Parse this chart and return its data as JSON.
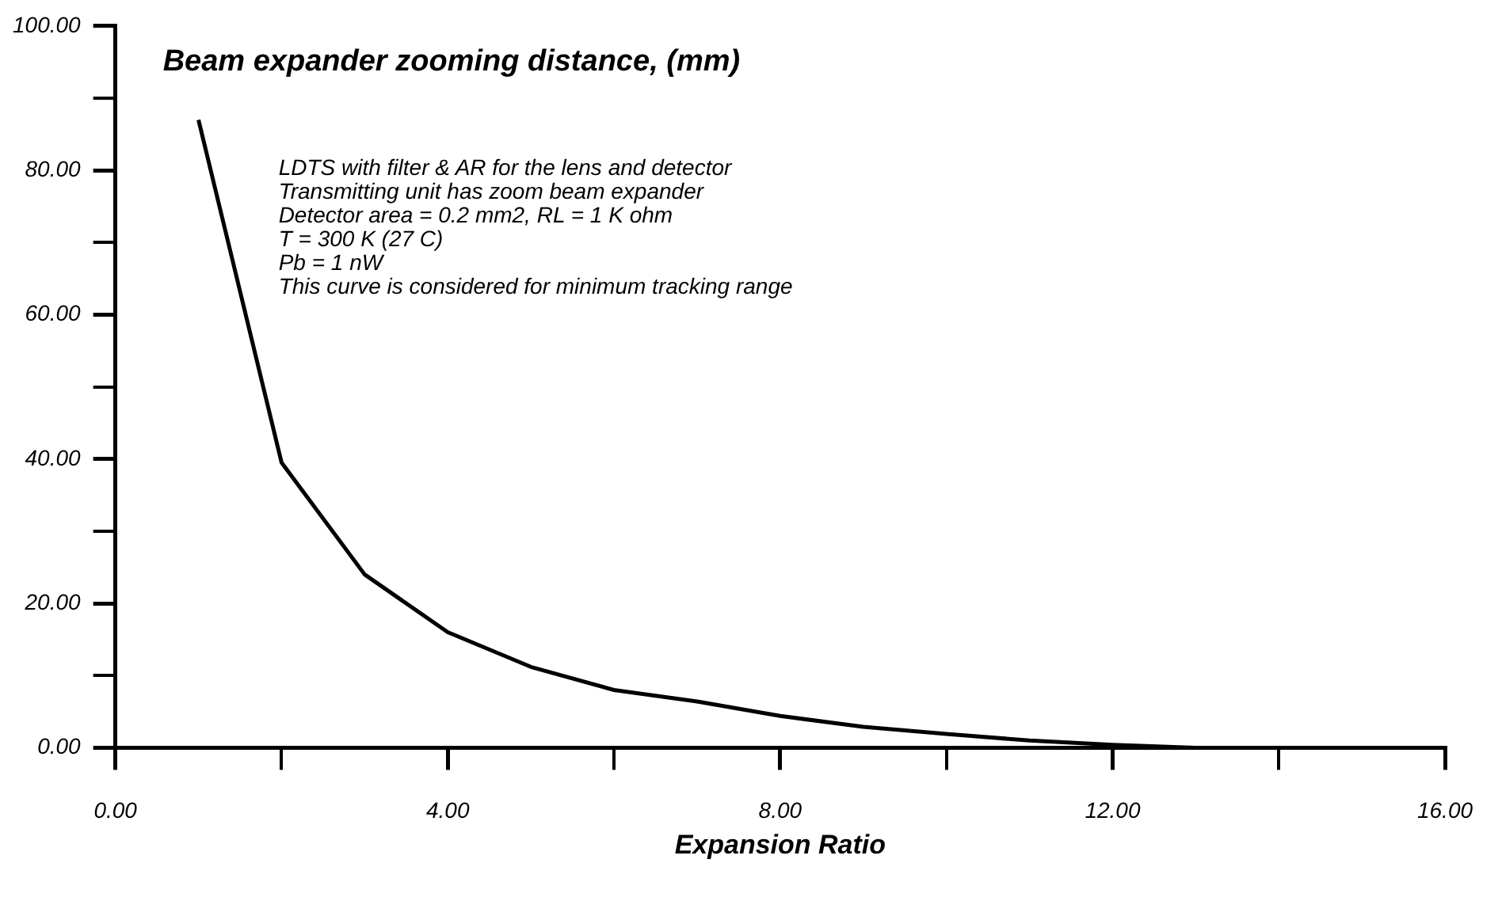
{
  "chart_data": {
    "type": "line",
    "title": "Beam expander zooming distance, (mm)",
    "xlabel": "Expansion Ratio",
    "annotations": [
      "LDTS with filter & AR for the lens and detector",
      "Transmitting unit has zoom beam expander",
      "Detector area = 0.2 mm2, RL = 1 K ohm",
      "T = 300 K (27 C)",
      "Pb = 1 nW",
      "This curve is considered for minimum tracking range"
    ],
    "x": [
      1,
      2,
      3,
      4,
      5,
      6,
      7,
      8,
      9,
      10,
      11,
      12,
      13
    ],
    "series": [
      {
        "color": "#000000",
        "values": [
          87,
          39.5,
          24,
          16,
          11.2,
          8,
          6.4,
          4.4,
          2.9,
          1.9,
          1,
          0.4,
          0
        ]
      }
    ],
    "xlim": [
      0,
      16
    ],
    "xticks": [
      {
        "value": 0,
        "label": "0.00"
      },
      {
        "value": 2,
        "label": null
      },
      {
        "value": 4,
        "label": "4.00"
      },
      {
        "value": 6,
        "label": null
      },
      {
        "value": 8,
        "label": "8.00"
      },
      {
        "value": 10,
        "label": null
      },
      {
        "value": 12,
        "label": "12.00"
      },
      {
        "value": 14,
        "label": null
      },
      {
        "value": 16,
        "label": "16.00"
      }
    ],
    "ylim": [
      0,
      100
    ],
    "yticks": [
      {
        "value": 0,
        "label": "0.00"
      },
      {
        "value": 10,
        "label": null
      },
      {
        "value": 20,
        "label": "20.00"
      },
      {
        "value": 30,
        "label": null
      },
      {
        "value": 40,
        "label": "40.00"
      },
      {
        "value": 50,
        "label": null
      },
      {
        "value": 60,
        "label": "60.00"
      },
      {
        "value": 70,
        "label": null
      },
      {
        "value": 80,
        "label": "80.00"
      },
      {
        "value": 90,
        "label": null
      },
      {
        "value": 100,
        "label": "100.00"
      }
    ],
    "grid": false,
    "legend": false,
    "marker": "none",
    "line_style": "solid"
  }
}
